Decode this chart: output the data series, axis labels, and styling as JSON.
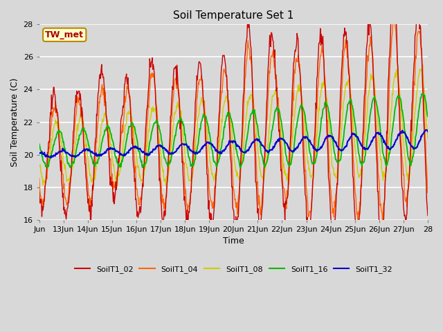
{
  "title": "Soil Temperature Set 1",
  "xlabel": "Time",
  "ylabel": "Soil Temperature (C)",
  "ylim": [
    16,
    28
  ],
  "xlim": [
    12,
    28
  ],
  "xtick_labels": [
    "Jun",
    "13Jun",
    "14Jun",
    "15Jun",
    "16Jun",
    "17Jun",
    "18Jun",
    "19Jun",
    "20Jun",
    "21Jun",
    "22Jun",
    "23Jun",
    "24Jun",
    "25Jun",
    "26Jun",
    "27Jun",
    "28"
  ],
  "xtick_positions": [
    12,
    13,
    14,
    15,
    16,
    17,
    18,
    19,
    20,
    21,
    22,
    23,
    24,
    25,
    26,
    27,
    28
  ],
  "ytick_positions": [
    16,
    18,
    20,
    22,
    24,
    26,
    28
  ],
  "colors": {
    "SoilT1_02": "#cc0000",
    "SoilT1_04": "#ff6600",
    "SoilT1_08": "#cccc00",
    "SoilT1_16": "#00bb00",
    "SoilT1_32": "#0000cc"
  },
  "annotation_text": "TW_met",
  "annotation_color": "#aa0000",
  "annotation_bg": "#ffffcc",
  "annotation_border": "#bb8800",
  "bg_color": "#d8d8d8",
  "plot_bg_color": "#d8d8d8",
  "title_fontsize": 11,
  "axis_fontsize": 8,
  "label_fontsize": 9
}
